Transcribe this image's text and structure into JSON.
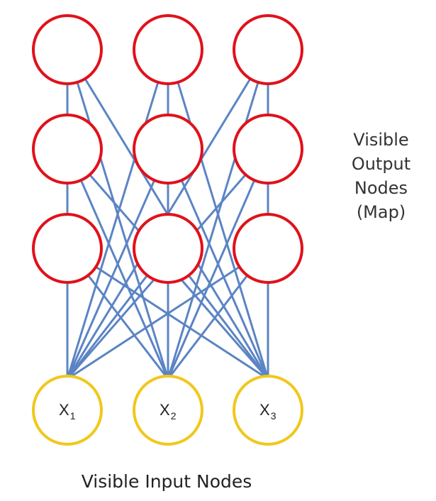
{
  "diagram": {
    "side_label_lines": [
      "Visible",
      "Output",
      "Nodes",
      "(Map)"
    ],
    "bottom_label": "Visible Input Nodes",
    "input_nodes": [
      {
        "main": "X",
        "sub": "1"
      },
      {
        "main": "X",
        "sub": "2"
      },
      {
        "main": "X",
        "sub": "3"
      }
    ],
    "output_grid": {
      "rows": 3,
      "cols": 3
    },
    "colors": {
      "output_stroke": "#e0111b",
      "input_stroke": "#f0c81c",
      "edge": "#5b84c4"
    }
  }
}
